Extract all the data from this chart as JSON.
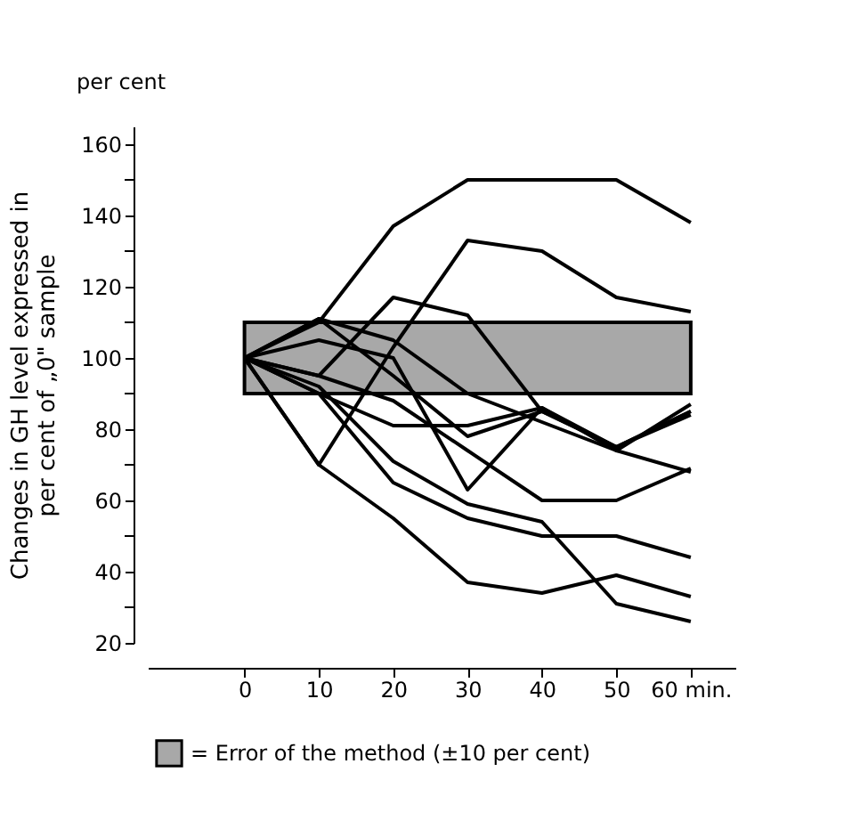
{
  "chart_data": {
    "type": "line",
    "ylabel": "Changes in GH level expressed in\nper cent of „0\" sample",
    "annotations": [
      "per cent"
    ],
    "x": [
      0,
      10,
      20,
      30,
      40,
      50,
      60
    ],
    "xlim": [
      -13,
      66
    ],
    "xticks": [
      0,
      10,
      20,
      30,
      40,
      50,
      {
        "value": 60,
        "label": "60 min."
      }
    ],
    "ylim": [
      20,
      165
    ],
    "yticks": [
      20,
      {
        "value": 30,
        "label": null
      },
      40,
      {
        "value": 50,
        "label": null
      },
      60,
      {
        "value": 70,
        "label": null
      },
      80,
      {
        "value": 90,
        "label": null
      },
      100,
      {
        "value": 110,
        "label": null
      },
      120,
      {
        "value": 130,
        "label": null
      },
      140,
      {
        "value": 150,
        "label": null
      },
      160
    ],
    "grid": false,
    "marker": "none",
    "line_style": "solid",
    "legend": "bottom",
    "bands": [
      {
        "axis": "y",
        "from": 90,
        "to": 110,
        "label": "= Error of the method (±10 per cent)",
        "color": "#a8a8a8"
      }
    ],
    "series": [
      {
        "color": "#000000",
        "values": [
          100,
          110,
          137,
          150,
          150,
          150,
          138
        ]
      },
      {
        "color": "#000000",
        "values": [
          100,
          70,
          103,
          133,
          130,
          117,
          113
        ]
      },
      {
        "color": "#000000",
        "values": [
          100,
          95,
          117,
          112,
          85,
          75,
          85
        ]
      },
      {
        "color": "#000000",
        "values": [
          100,
          111,
          105,
          90,
          82,
          74,
          68
        ]
      },
      {
        "color": "#000000",
        "values": [
          100,
          90,
          81,
          81,
          86,
          74,
          87
        ]
      },
      {
        "color": "#000000",
        "values": [
          100,
          105,
          100,
          63,
          86,
          75,
          85
        ]
      },
      {
        "color": "#000000",
        "values": [
          100,
          95,
          88,
          74,
          60,
          60,
          69
        ]
      },
      {
        "color": "#000000",
        "values": [
          100,
          92,
          71,
          59,
          54,
          31,
          26
        ]
      },
      {
        "color": "#000000",
        "values": [
          100,
          90,
          65,
          55,
          50,
          50,
          44
        ]
      },
      {
        "color": "#000000",
        "values": [
          100,
          70,
          55,
          37,
          34,
          39,
          33
        ]
      },
      {
        "color": "#000000",
        "values": [
          100,
          111,
          95,
          78,
          85,
          75,
          84
        ]
      }
    ]
  }
}
